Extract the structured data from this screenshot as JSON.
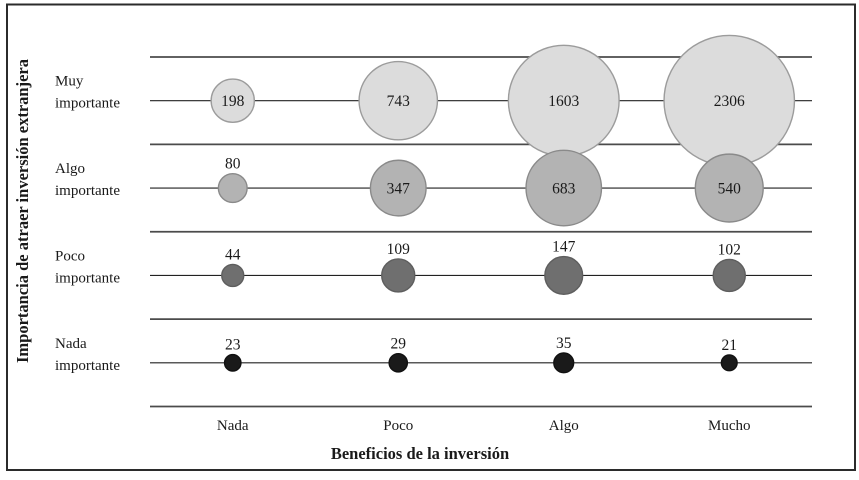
{
  "chart_data": {
    "type": "scatter",
    "subtype": "bubble",
    "title": "",
    "xlabel": "Beneficios de la inversión",
    "ylabel": "Importancia de atraer inversión extranjera",
    "x_categories": [
      "Nada",
      "Poco",
      "Algo",
      "Mucho"
    ],
    "y_categories": [
      "Muy importante",
      "Algo importante",
      "Poco importante",
      "Nada importante"
    ],
    "y_category_lines": [
      [
        "Muy",
        "importante"
      ],
      [
        "Algo",
        "importante"
      ],
      [
        "Poco",
        "importante"
      ],
      [
        "Nada",
        "importante"
      ]
    ],
    "series": [
      {
        "name": "Muy importante",
        "values": [
          198,
          743,
          1603,
          2306
        ],
        "fill": "#dcdcdc",
        "stroke": "#9c9c9c"
      },
      {
        "name": "Algo importante",
        "values": [
          80,
          347,
          683,
          540
        ],
        "fill": "#b3b3b3",
        "stroke": "#8a8a8a"
      },
      {
        "name": "Poco importante",
        "values": [
          44,
          109,
          147,
          102
        ],
        "fill": "#6f6f6f",
        "stroke": "#5e5e5e"
      },
      {
        "name": "Nada importante",
        "values": [
          23,
          29,
          35,
          21
        ],
        "fill": "#1a1a1a",
        "stroke": "#111111"
      }
    ],
    "size_scale": {
      "k": 2.0,
      "power": 0.45
    },
    "grid": "horizontal only: 5 row-boundary lines plus a center line through each row of bubbles",
    "legend": "none",
    "colors": {
      "frame": "#2b2b2b",
      "grid_boundary": "#4b4b4b",
      "grid_center": "#222222",
      "text": "#1a1a1a",
      "background": "#ffffff"
    }
  }
}
